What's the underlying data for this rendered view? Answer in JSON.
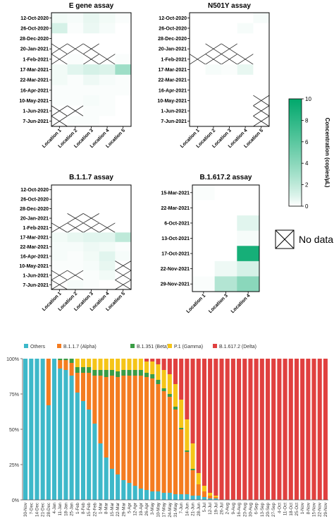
{
  "chart_data": [
    {
      "type": "heatmap",
      "title": "E gene assay",
      "columns": [
        "Location 1",
        "Location 2",
        "Location 3",
        "Location 4",
        "Location 5"
      ],
      "rows": [
        "12-Oct-2020",
        "26-Oct-2020",
        "28-Dec-2020",
        "20-Jan-2021",
        "1-Feb-2021",
        "17-Mar-2021",
        "22-Mar-2021",
        "16-Apr-2021",
        "10-May-2021",
        "1-Jun-2021",
        "7-Jun-2021"
      ],
      "values": [
        [
          0.3,
          0.2,
          0.6,
          0.3,
          0.1
        ],
        [
          1.2,
          0.1,
          0.5,
          0.2,
          0
        ],
        [
          0,
          0,
          0,
          0,
          0
        ],
        [
          null,
          null,
          null,
          0,
          0
        ],
        [
          null,
          0.1,
          null,
          null,
          0.1
        ],
        [
          0.3,
          0.8,
          1.2,
          1.0,
          3.2
        ],
        [
          0.3,
          0.1,
          0.4,
          0.2,
          0.1
        ],
        [
          0.1,
          0.1,
          0.1,
          0.1,
          0.1
        ],
        [
          0.1,
          0.1,
          0.2,
          0.1,
          0
        ],
        [
          null,
          null,
          0.1,
          0.1,
          0
        ],
        [
          null,
          0.1,
          0.1,
          0,
          0
        ]
      ],
      "zrange": [
        0,
        10
      ]
    },
    {
      "type": "heatmap",
      "title": "N501Y assay",
      "columns": [
        "Location 1",
        "Location 2",
        "Location 3",
        "Location 4",
        "Location 5"
      ],
      "rows": [
        "12-Oct-2020",
        "26-Oct-2020",
        "28-Dec-2020",
        "20-Jan-2021",
        "1-Feb-2021",
        "17-Mar-2021",
        "22-Mar-2021",
        "16-Apr-2021",
        "10-May-2021",
        "1-Jun-2021",
        "7-Jun-2021"
      ],
      "values": [
        [
          0,
          0,
          0,
          0,
          0.2
        ],
        [
          0,
          0,
          0,
          0.2,
          0
        ],
        [
          0,
          0,
          0,
          0,
          0
        ],
        [
          0,
          null,
          null,
          0,
          0
        ],
        [
          null,
          null,
          null,
          null,
          0
        ],
        [
          0,
          0.2,
          0.1,
          0.6,
          0
        ],
        [
          0,
          0,
          0,
          0,
          0
        ],
        [
          0,
          0,
          0,
          0,
          0
        ],
        [
          0,
          0,
          0,
          0,
          null
        ],
        [
          0,
          0,
          0,
          0,
          null
        ],
        [
          0,
          0,
          0,
          0,
          null
        ]
      ],
      "zrange": [
        0,
        10
      ]
    },
    {
      "type": "heatmap",
      "title": "B.1.1.7 assay",
      "columns": [
        "Location 1",
        "Location 2",
        "Location 3",
        "Location 4",
        "Location 5"
      ],
      "rows": [
        "12-Oct-2020",
        "26-Oct-2020",
        "28-Dec-2020",
        "20-Jan-2021",
        "1-Feb-2021",
        "17-Mar-2021",
        "22-Mar-2021",
        "16-Apr-2021",
        "10-May-2021",
        "1-Jun-2021",
        "7-Jun-2021"
      ],
      "values": [
        [
          0,
          0,
          0,
          0,
          0
        ],
        [
          0,
          0,
          0,
          0,
          0
        ],
        [
          0,
          0,
          0,
          0,
          0
        ],
        [
          0,
          null,
          null,
          0,
          0
        ],
        [
          null,
          null,
          null,
          null,
          0
        ],
        [
          0.3,
          0.6,
          0.8,
          0.8,
          2.0
        ],
        [
          0.2,
          0.2,
          0.4,
          0.3,
          0.1
        ],
        [
          0.2,
          0.1,
          0.3,
          0.8,
          0.2
        ],
        [
          0.1,
          0.1,
          0.2,
          0.6,
          null
        ],
        [
          null,
          null,
          0.1,
          0.3,
          null
        ],
        [
          null,
          0.2,
          0.1,
          0,
          null
        ]
      ],
      "zrange": [
        0,
        10
      ]
    },
    {
      "type": "heatmap",
      "title": "B.1.617.2 assay",
      "columns": [
        "Location 1",
        "Location 3",
        "Location 4"
      ],
      "rows": [
        "15-Mar-2021",
        "22-Mar-2021",
        "6-Oct-2021",
        "13-Oct-2021",
        "17-Oct-2021",
        "22-Nov-2021",
        "29-Nov-2021"
      ],
      "values": [
        [
          0.1,
          0,
          0
        ],
        [
          0,
          0,
          0
        ],
        [
          0,
          0,
          0.8
        ],
        [
          0,
          0,
          0.2
        ],
        [
          0,
          0,
          9.0
        ],
        [
          0,
          0.4,
          1.2
        ],
        [
          0.1,
          2.4,
          4.0
        ]
      ],
      "zrange": [
        0,
        10
      ]
    },
    {
      "type": "colorbar",
      "label": "Concentration (copies/µL)",
      "ticks": [
        "0",
        "2",
        "4",
        "6",
        "8",
        "10"
      ],
      "range": [
        0,
        10
      ]
    },
    {
      "type": "legend",
      "label": "No data"
    },
    {
      "type": "stacked_bar",
      "legend_placement": "top",
      "series_names": [
        "Others",
        "B.1.1.7 (Alpha)",
        "B.1.351 (Beta)",
        "P.1 (Gamma)",
        "B.1.617.2 (Delta)"
      ],
      "colors": [
        "#3db8c9",
        "#f47c20",
        "#3a9c45",
        "#f5c518",
        "#e0403f"
      ],
      "ylim": [
        0,
        100
      ],
      "yticks": [
        "0%",
        "25%",
        "50%",
        "75%",
        "100%"
      ],
      "x": [
        "30-Nov",
        "7-Dec",
        "14-Dec",
        "21-Dec",
        "28-Dec",
        "4-Jan",
        "11-Jan",
        "18-Jan",
        "25-Jan",
        "1-Feb",
        "8-Feb",
        "15-Feb",
        "22-Feb",
        "1-Mar",
        "8-Mar",
        "15-Mar",
        "22-Mar",
        "29-Mar",
        "5-Apr",
        "12-Apr",
        "19-Apr",
        "26-Apr",
        "3-May",
        "10-May",
        "17-May",
        "24-May",
        "31-May",
        "7-Jun",
        "14-Jun",
        "21-Jun",
        "28-Jun",
        "5-Jul",
        "12-Jul",
        "19-Jul",
        "26-Jul",
        "2-Aug",
        "9-Aug",
        "16-Aug",
        "23-Aug",
        "30-Aug",
        "6-Sep",
        "13-Sep",
        "20-Sep",
        "27-Sep",
        "4-Oct",
        "11-Oct",
        "18-Oct",
        "25-Oct",
        "1-Nov",
        "8-Nov",
        "15-Nov",
        "22-Nov",
        "29-Nov"
      ],
      "series": [
        {
          "values": [
            100,
            100,
            100,
            100,
            67,
            100,
            93,
            92,
            88,
            76,
            70,
            64,
            54,
            40,
            30,
            22,
            18,
            14,
            12,
            10,
            8,
            7,
            6,
            6,
            5,
            5,
            4,
            4,
            4,
            3,
            3,
            2,
            1,
            1,
            0,
            0,
            0,
            0,
            0,
            0,
            0,
            0,
            0,
            0,
            0,
            0,
            0,
            0,
            0,
            0,
            0,
            0,
            0
          ]
        },
        {
          "values": [
            0,
            0,
            0,
            0,
            33,
            0,
            6,
            7,
            9,
            14,
            20,
            26,
            34,
            48,
            57,
            66,
            69,
            74,
            76,
            78,
            80,
            80,
            80,
            76,
            72,
            68,
            60,
            46,
            30,
            18,
            8,
            4,
            2,
            1,
            0,
            0,
            0,
            0,
            0,
            0,
            0,
            0,
            0,
            0,
            0,
            0,
            0,
            0,
            0,
            0,
            0,
            0,
            0
          ]
        },
        {
          "values": [
            0,
            0,
            0,
            0,
            0,
            0,
            1,
            1,
            3,
            4,
            4,
            4,
            4,
            4,
            5,
            4,
            4,
            4,
            4,
            4,
            4,
            3,
            3,
            3,
            2,
            2,
            2,
            1,
            1,
            1,
            0,
            0,
            0,
            0,
            0,
            0,
            0,
            0,
            0,
            0,
            0,
            0,
            0,
            0,
            0,
            0,
            0,
            0,
            0,
            0,
            0,
            0,
            0
          ]
        },
        {
          "values": [
            0,
            0,
            0,
            0,
            0,
            0,
            0,
            0,
            0,
            6,
            6,
            6,
            8,
            8,
            8,
            8,
            9,
            8,
            8,
            8,
            8,
            8,
            9,
            11,
            13,
            14,
            16,
            20,
            22,
            18,
            8,
            4,
            2,
            1,
            0,
            0,
            0,
            0,
            0,
            0,
            0,
            0,
            0,
            0,
            0,
            0,
            0,
            0,
            0,
            0,
            0,
            0,
            0
          ]
        },
        {
          "values": [
            0,
            0,
            0,
            0,
            0,
            0,
            0,
            0,
            0,
            0,
            0,
            0,
            0,
            0,
            0,
            0,
            0,
            0,
            0,
            0,
            0,
            2,
            2,
            4,
            8,
            11,
            18,
            29,
            43,
            60,
            81,
            90,
            95,
            97,
            100,
            100,
            100,
            100,
            100,
            100,
            100,
            100,
            100,
            100,
            100,
            100,
            100,
            100,
            100,
            100,
            100,
            100,
            100
          ]
        }
      ]
    }
  ]
}
